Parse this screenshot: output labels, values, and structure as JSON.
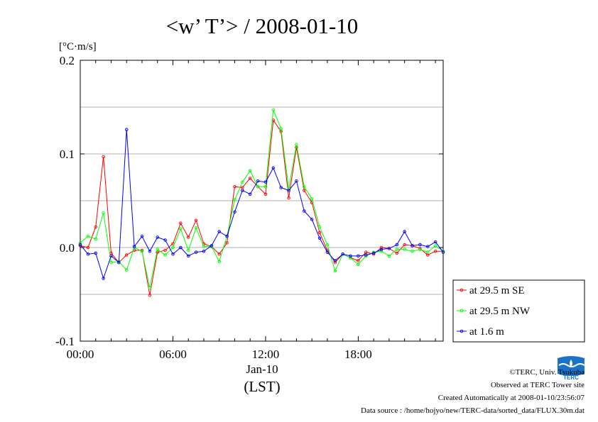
{
  "chart_data": {
    "type": "line",
    "title": "<w’ T’> / 2008-01-10",
    "ylabel": "[°C·m/s]",
    "xlabel": "(LST)",
    "date_label": "Jan-10",
    "ylim": [
      -0.1,
      0.2
    ],
    "y_ticks": [
      "0.2",
      "0.1",
      "0.0",
      "-0.1"
    ],
    "y_tick_values": [
      0.2,
      0.1,
      0.0,
      -0.1
    ],
    "x_ticks": [
      "00:00",
      "06:00",
      "12:00",
      "18:00"
    ],
    "x_tick_hours": [
      0,
      6,
      12,
      18
    ],
    "xlim_hours": [
      0,
      23.5
    ],
    "grid": true,
    "legend_position": "right",
    "x_hours": [
      0,
      0.5,
      1,
      1.5,
      2,
      2.5,
      3,
      3.5,
      4,
      4.5,
      5,
      5.5,
      6,
      6.5,
      7,
      7.5,
      8,
      8.5,
      9,
      9.5,
      10,
      10.5,
      11,
      11.5,
      12,
      12.5,
      13,
      13.5,
      14,
      14.5,
      15,
      15.5,
      16,
      16.5,
      17,
      17.5,
      18,
      18.5,
      19,
      19.5,
      20,
      20.5,
      21,
      21.5,
      22,
      22.5,
      23,
      23.5
    ],
    "series": [
      {
        "name": "at 29.5 m SE",
        "color": "#ff0000",
        "values": [
          0.002,
          0.0,
          0.022,
          0.097,
          -0.006,
          -0.016,
          -0.008,
          -0.003,
          -0.003,
          -0.051,
          -0.005,
          -0.003,
          0.004,
          0.026,
          0.011,
          0.029,
          0.004,
          0.001,
          -0.007,
          0.005,
          0.065,
          0.064,
          0.074,
          0.065,
          0.057,
          0.136,
          0.124,
          0.053,
          0.107,
          0.061,
          0.048,
          0.016,
          -0.003,
          -0.016,
          -0.007,
          -0.011,
          -0.014,
          -0.005,
          -0.007,
          0.0,
          -0.001,
          -0.006,
          0.003,
          0.002,
          -0.001,
          -0.008,
          -0.004,
          -0.004
        ]
      },
      {
        "name": "at 29.5 m NW",
        "color": "#00ff00",
        "values": [
          0.005,
          0.012,
          0.009,
          0.037,
          -0.016,
          -0.015,
          -0.024,
          0.0,
          -0.004,
          -0.043,
          -0.002,
          -0.008,
          0.0,
          0.02,
          -0.003,
          0.021,
          0.001,
          0.001,
          -0.015,
          0.012,
          0.051,
          0.07,
          0.082,
          0.065,
          0.065,
          0.147,
          0.127,
          0.063,
          0.11,
          0.065,
          0.052,
          0.022,
          0.003,
          -0.025,
          -0.007,
          -0.011,
          -0.018,
          -0.009,
          -0.005,
          -0.004,
          -0.009,
          -0.002,
          -0.002,
          -0.004,
          -0.002,
          -0.005,
          0.002,
          -0.004
        ]
      },
      {
        "name": "at 1.6 m",
        "color": "#0000ff",
        "values": [
          0.003,
          -0.007,
          -0.006,
          -0.033,
          -0.009,
          -0.016,
          0.126,
          0.001,
          0.012,
          -0.004,
          0.011,
          0.008,
          -0.007,
          0.0,
          -0.009,
          -0.005,
          -0.004,
          0.002,
          0.017,
          0.012,
          0.038,
          0.061,
          0.057,
          0.071,
          0.07,
          0.085,
          0.064,
          0.061,
          0.071,
          0.039,
          0.03,
          0.01,
          -0.005,
          -0.014,
          -0.007,
          -0.009,
          -0.009,
          -0.008,
          -0.006,
          -0.002,
          -0.001,
          0.003,
          0.017,
          0.002,
          0.003,
          0.001,
          0.006,
          -0.005
        ]
      }
    ]
  },
  "credits": {
    "copyright": "©TERC, Univ. Tsukuba",
    "observed": "Observed at TERC Tower site",
    "created": "Created Automatically at 2008-01-10/23:56:07",
    "source": "Data source : /home/hojyo/new/TERC-data/sorted_data/FLUX.30m.dat"
  },
  "logo": {
    "text": "TERC",
    "color": "#1a73c8"
  }
}
